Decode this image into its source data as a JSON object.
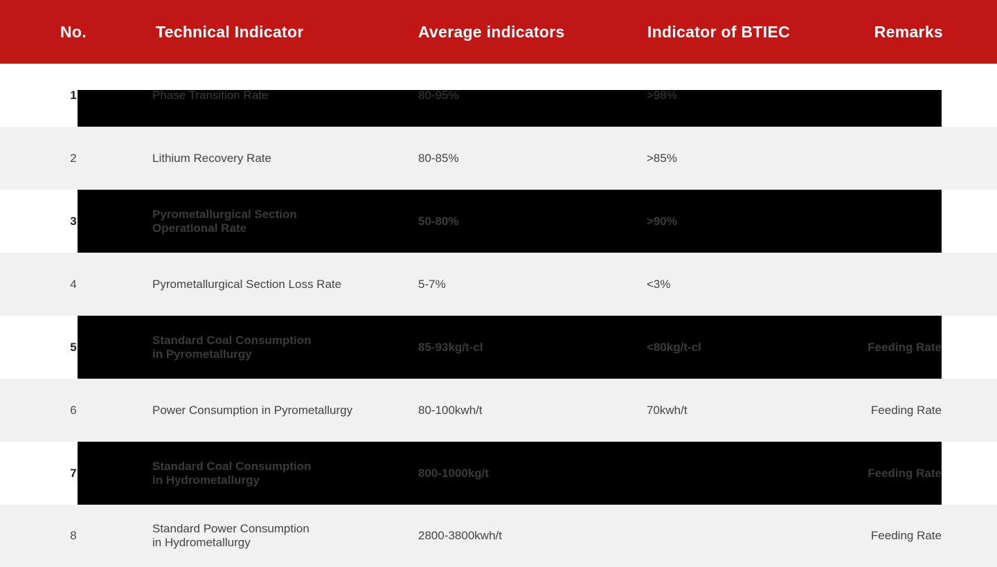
{
  "colors": {
    "header_bg": "#c11616",
    "header_text": "#ffffff",
    "row_alt_bg": "#f1f1f1",
    "bar": "#000000",
    "bar_text": "#3b3b3b"
  },
  "chart_data": {
    "type": "table",
    "title": "",
    "columns": [
      "No.",
      "Technical Indicator",
      "Average indicators",
      "Indicator of BTIEC",
      "Remarks"
    ],
    "rows": [
      {
        "no": "1",
        "indicator": "Phase Transition Rate",
        "average": "80-95%",
        "btiec": ">98%",
        "remarks": ""
      },
      {
        "no": "2",
        "indicator": "Lithium Recovery Rate",
        "average": "80-85%",
        "btiec": ">85%",
        "remarks": ""
      },
      {
        "no": "3",
        "indicator": "Pyrometallurgical Section\nOperational Rate",
        "average": "50-80%",
        "btiec": ">90%",
        "remarks": ""
      },
      {
        "no": "4",
        "indicator": "Pyrometallurgical Section Loss Rate",
        "average": "5-7%",
        "btiec": "<3%",
        "remarks": ""
      },
      {
        "no": "5",
        "indicator": "Standard Coal Consumption\nin Pyrometallurgy",
        "average": "85-93kg/t-cl",
        "btiec": "<80kg/t-cl",
        "remarks": "Feeding Rate"
      },
      {
        "no": "6",
        "indicator": "Power Consumption in Pyrometallurgy",
        "average": "80-100kwh/t",
        "btiec": "70kwh/t",
        "remarks": "Feeding Rate"
      },
      {
        "no": "7",
        "indicator": "Standard Coal Consumption\nin Hydrometallurgy",
        "average": "800-1000kg/t",
        "btiec": "",
        "remarks": "Feeding Rate"
      },
      {
        "no": "8",
        "indicator": "Standard Power Consumption\nin Hydrometallurgy",
        "average": "2800-3800kwh/t",
        "btiec": "",
        "remarks": "Feeding Rate"
      }
    ],
    "layout": {
      "striped": true,
      "blacked_out_rows": [
        1,
        3,
        5,
        7
      ],
      "grid": false
    }
  }
}
